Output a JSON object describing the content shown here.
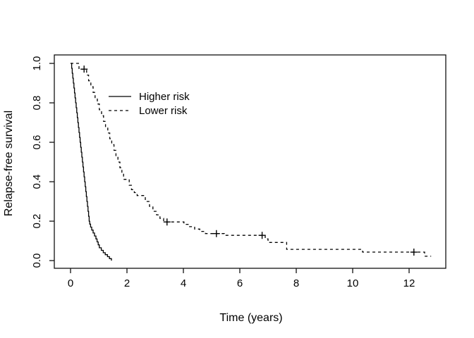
{
  "chart_data": {
    "type": "line",
    "subtype": "kaplan-meier-step",
    "title": "",
    "xlabel": "Time (years)",
    "ylabel": "Relapse-free survival",
    "xlim": [
      -0.575,
      13.3
    ],
    "ylim": [
      -0.039,
      1.043
    ],
    "grid": "off",
    "x_ticks": [
      0,
      2,
      4,
      6,
      8,
      10,
      12
    ],
    "x_tick_labels": [
      "0",
      "2",
      "4",
      "6",
      "8",
      "10",
      "12"
    ],
    "y_ticks": [
      0,
      0.2,
      0.4,
      0.6,
      0.8,
      1.0
    ],
    "y_tick_labels": [
      "0.0",
      "0.2",
      "0.4",
      "0.6",
      "0.8",
      "1.0"
    ],
    "line_color": "#000000",
    "legend": {
      "position": "upper-left-inside",
      "entries": [
        {
          "label": "Higher risk",
          "line": "solid"
        },
        {
          "label": "Lower risk",
          "line": "dashed"
        }
      ]
    },
    "series": [
      {
        "name": "Higher risk",
        "line": "solid",
        "color": "#000000",
        "start": [
          0,
          1.0
        ],
        "end_time": 1.45,
        "steps": [
          [
            0.04,
            0.975
          ],
          [
            0.06,
            0.95
          ],
          [
            0.08,
            0.925
          ],
          [
            0.1,
            0.9
          ],
          [
            0.12,
            0.875
          ],
          [
            0.14,
            0.85
          ],
          [
            0.16,
            0.825
          ],
          [
            0.18,
            0.8
          ],
          [
            0.2,
            0.775
          ],
          [
            0.22,
            0.75
          ],
          [
            0.24,
            0.725
          ],
          [
            0.26,
            0.7
          ],
          [
            0.28,
            0.675
          ],
          [
            0.3,
            0.65
          ],
          [
            0.32,
            0.625
          ],
          [
            0.34,
            0.6
          ],
          [
            0.36,
            0.575
          ],
          [
            0.38,
            0.55
          ],
          [
            0.4,
            0.525
          ],
          [
            0.42,
            0.5
          ],
          [
            0.44,
            0.475
          ],
          [
            0.46,
            0.45
          ],
          [
            0.48,
            0.425
          ],
          [
            0.5,
            0.4
          ],
          [
            0.52,
            0.375
          ],
          [
            0.54,
            0.35
          ],
          [
            0.56,
            0.325
          ],
          [
            0.58,
            0.3
          ],
          [
            0.6,
            0.275
          ],
          [
            0.62,
            0.25
          ],
          [
            0.64,
            0.225
          ],
          [
            0.66,
            0.2
          ],
          [
            0.68,
            0.185
          ],
          [
            0.71,
            0.17
          ],
          [
            0.75,
            0.155
          ],
          [
            0.8,
            0.14
          ],
          [
            0.85,
            0.125
          ],
          [
            0.9,
            0.11
          ],
          [
            0.94,
            0.095
          ],
          [
            0.98,
            0.08
          ],
          [
            1.02,
            0.065
          ],
          [
            1.09,
            0.052
          ],
          [
            1.16,
            0.04
          ],
          [
            1.23,
            0.03
          ],
          [
            1.31,
            0.02
          ],
          [
            1.38,
            0.01
          ],
          [
            1.45,
            0.0
          ]
        ],
        "censor_marks": []
      },
      {
        "name": "Lower risk",
        "line": "dashed",
        "color": "#000000",
        "start": [
          0,
          1.0
        ],
        "end_time": 12.78,
        "steps": [
          [
            0.3,
            0.971
          ],
          [
            0.57,
            0.941
          ],
          [
            0.64,
            0.912
          ],
          [
            0.72,
            0.882
          ],
          [
            0.8,
            0.853
          ],
          [
            0.87,
            0.824
          ],
          [
            0.95,
            0.794
          ],
          [
            1.02,
            0.765
          ],
          [
            1.1,
            0.735
          ],
          [
            1.17,
            0.706
          ],
          [
            1.24,
            0.676
          ],
          [
            1.32,
            0.647
          ],
          [
            1.39,
            0.618
          ],
          [
            1.46,
            0.588
          ],
          [
            1.54,
            0.559
          ],
          [
            1.61,
            0.529
          ],
          [
            1.68,
            0.5
          ],
          [
            1.75,
            0.471
          ],
          [
            1.82,
            0.441
          ],
          [
            1.88,
            0.412
          ],
          [
            2.08,
            0.382
          ],
          [
            2.16,
            0.36
          ],
          [
            2.26,
            0.345
          ],
          [
            2.36,
            0.33
          ],
          [
            2.65,
            0.3
          ],
          [
            2.8,
            0.275
          ],
          [
            2.92,
            0.25
          ],
          [
            3.05,
            0.232
          ],
          [
            3.17,
            0.214
          ],
          [
            3.3,
            0.196
          ],
          [
            4.02,
            0.184
          ],
          [
            4.22,
            0.172
          ],
          [
            4.4,
            0.16
          ],
          [
            4.58,
            0.148
          ],
          [
            4.78,
            0.137
          ],
          [
            5.45,
            0.128
          ],
          [
            6.9,
            0.11
          ],
          [
            7.0,
            0.092
          ],
          [
            7.66,
            0.057
          ],
          [
            10.35,
            0.043
          ],
          [
            12.55,
            0.022
          ]
        ],
        "censor_marks": [
          [
            0.48,
            0.971
          ],
          [
            3.42,
            0.196
          ],
          [
            5.17,
            0.137
          ],
          [
            6.79,
            0.128
          ],
          [
            12.17,
            0.043
          ]
        ]
      }
    ]
  }
}
